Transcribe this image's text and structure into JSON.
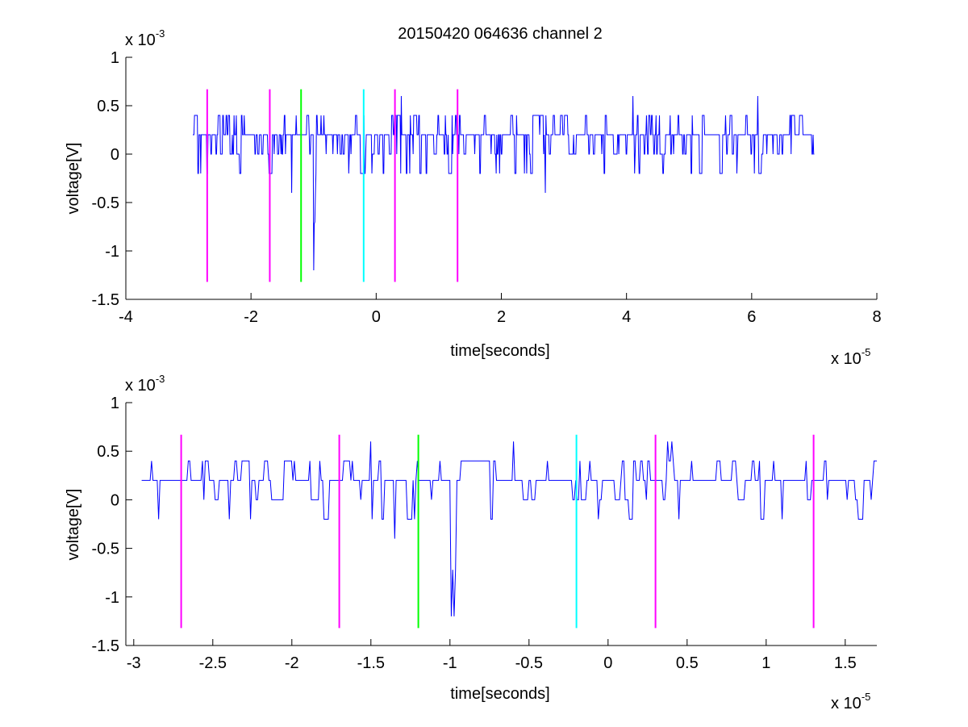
{
  "chart_data": [
    {
      "type": "line",
      "title": "20150420 064636 channel 2",
      "xlabel": "time[seconds]",
      "ylabel": "voltage[V]",
      "x_multiplier": "x 10",
      "x_multiplier_exp": "-5",
      "y_multiplier": "x 10",
      "y_multiplier_exp": "-3",
      "xlim": [
        -4,
        8
      ],
      "ylim": [
        -1.5,
        1
      ],
      "xticks": [
        "-4",
        "-2",
        "0",
        "2",
        "4",
        "6",
        "8"
      ],
      "yticks": [
        "1",
        "0.5",
        "0",
        "-0.5",
        "-1",
        "-1.5"
      ],
      "grid": false,
      "series": [
        {
          "color": "#0000ff",
          "x_range": [
            -2.93,
            7.0
          ],
          "baseline": 0.2,
          "spikes": [
            {
              "x": -1.35,
              "y": -0.4
            },
            {
              "x": -1.0,
              "y": -1.2
            },
            {
              "x": -0.98,
              "y": -0.7
            },
            {
              "x": 0.4,
              "y": 0.6
            },
            {
              "x": 2.7,
              "y": -0.4
            },
            {
              "x": 4.1,
              "y": 0.6
            },
            {
              "x": 6.1,
              "y": 0.6
            }
          ]
        }
      ],
      "markers": [
        {
          "x": -2.7,
          "color": "#ff00ff"
        },
        {
          "x": -1.7,
          "color": "#ff00ff"
        },
        {
          "x": -1.2,
          "color": "#00ff00"
        },
        {
          "x": -0.2,
          "color": "#00ffff"
        },
        {
          "x": 0.3,
          "color": "#ff00ff"
        },
        {
          "x": 1.3,
          "color": "#ff00ff"
        }
      ],
      "marker_range": [
        -1.32,
        0.67
      ]
    },
    {
      "type": "line",
      "title": "",
      "xlabel": "time[seconds]",
      "ylabel": "voltage[V]",
      "x_multiplier": "x 10",
      "x_multiplier_exp": "-5",
      "y_multiplier": "x 10",
      "y_multiplier_exp": "-3",
      "xlim": [
        -3.05,
        1.7
      ],
      "ylim": [
        -1.5,
        1
      ],
      "xticks": [
        "-3",
        "-2.5",
        "-2",
        "-1.5",
        "-1",
        "-0.5",
        "0",
        "0.5",
        "1",
        "1.5"
      ],
      "yticks": [
        "1",
        "0.5",
        "0",
        "-0.5",
        "-1",
        "-1.5"
      ],
      "grid": false,
      "series": [
        {
          "color": "#0000ff",
          "x_range": [
            -2.95,
            1.7
          ],
          "baseline": 0.2,
          "spikes": [
            {
              "x": -2.4,
              "y": -0.2
            },
            {
              "x": -1.5,
              "y": 0.6
            },
            {
              "x": -1.35,
              "y": -0.4
            },
            {
              "x": -0.99,
              "y": -1.2
            },
            {
              "x": -0.97,
              "y": -1.2
            },
            {
              "x": -0.6,
              "y": 0.6
            },
            {
              "x": 0.38,
              "y": 0.6
            },
            {
              "x": 0.4,
              "y": 0.6
            },
            {
              "x": 1.7,
              "y": 0.4
            }
          ]
        }
      ],
      "markers": [
        {
          "x": -2.7,
          "color": "#ff00ff"
        },
        {
          "x": -1.7,
          "color": "#ff00ff"
        },
        {
          "x": -1.2,
          "color": "#00ff00"
        },
        {
          "x": -0.2,
          "color": "#00ffff"
        },
        {
          "x": 0.3,
          "color": "#ff00ff"
        },
        {
          "x": 1.3,
          "color": "#ff00ff"
        }
      ],
      "marker_range": [
        -1.32,
        0.67
      ]
    }
  ]
}
